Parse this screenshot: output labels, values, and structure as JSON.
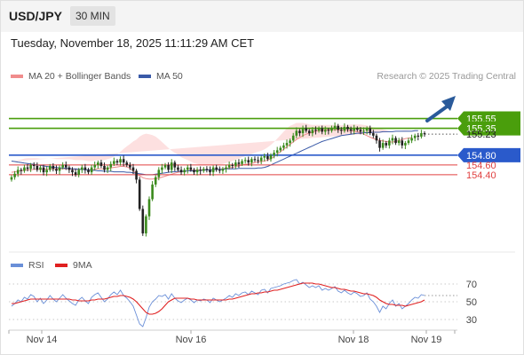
{
  "header": {
    "symbol": "USD/JPY",
    "timeframe": "30 MIN"
  },
  "datetime": "Tuesday, November 18, 2025 11:11:29 AM CET",
  "legend": {
    "ma_bb": {
      "label": "MA 20 + Bollinger Bands",
      "color": "#f08c8c"
    },
    "ma50": {
      "label": "MA 50",
      "color": "#3a5aa8"
    }
  },
  "credit": "Research © 2025 Trading Central",
  "rsi_legend": {
    "rsi": {
      "label": "RSI",
      "color": "#6a8fd8"
    },
    "ma9": {
      "label": "9MA",
      "color": "#e02020"
    }
  },
  "chart_data": [
    {
      "type": "candlestick",
      "ylim": [
        152.8,
        156.25
      ],
      "x_ticks": [
        "Nov 14",
        "Nov 16",
        "Nov 18",
        "Nov 19"
      ],
      "levels": [
        {
          "value": 155.55,
          "label": "155.55",
          "color": "#4a9e0c",
          "boxed": true
        },
        {
          "value": 155.35,
          "label": "155.35",
          "color": "#4a9e0c",
          "boxed": true
        },
        {
          "value": 155.23,
          "label": "155.23",
          "color": "#222222",
          "boxed": false,
          "dotted": true
        },
        {
          "value": 154.8,
          "label": "154.80",
          "color": "#2a5acb",
          "boxed": true
        },
        {
          "value": 154.6,
          "label": "154.60",
          "color": "#e04040",
          "boxed": false
        },
        {
          "value": 154.4,
          "label": "154.40",
          "color": "#e04040",
          "boxed": false
        }
      ],
      "close": [
        154.35,
        154.42,
        154.5,
        154.48,
        154.55,
        154.52,
        154.6,
        154.58,
        154.5,
        154.55,
        154.45,
        154.5,
        154.58,
        154.52,
        154.48,
        154.55,
        154.6,
        154.55,
        154.5,
        154.45,
        154.4,
        154.5,
        154.55,
        154.5,
        154.45,
        154.55,
        154.6,
        154.65,
        154.58,
        154.5,
        154.55,
        154.62,
        154.68,
        154.65,
        154.72,
        154.65,
        154.6,
        154.55,
        154.48,
        154.3,
        153.7,
        153.2,
        153.55,
        153.9,
        154.2,
        154.35,
        154.5,
        154.55,
        154.6,
        154.5,
        154.65,
        154.55,
        154.5,
        154.45,
        154.5,
        154.55,
        154.5,
        154.45,
        154.5,
        154.48,
        154.52,
        154.5,
        154.45,
        154.55,
        154.5,
        154.48,
        154.52,
        154.55,
        154.6,
        154.58,
        154.65,
        154.62,
        154.68,
        154.7,
        154.65,
        154.72,
        154.7,
        154.68,
        154.75,
        154.78,
        154.72,
        154.8,
        154.85,
        154.9,
        154.95,
        155.0,
        155.05,
        155.1,
        155.2,
        155.3,
        155.25,
        155.35,
        155.3,
        155.25,
        155.32,
        155.3,
        155.35,
        155.28,
        155.32,
        155.3,
        155.35,
        155.4,
        155.32,
        155.3,
        155.38,
        155.33,
        155.3,
        155.35,
        155.32,
        155.28,
        155.3,
        155.35,
        155.25,
        155.2,
        155.1,
        154.95,
        155.05,
        155.0,
        155.1,
        155.15,
        155.05,
        155.1,
        155.0,
        155.05,
        155.1,
        155.15,
        155.2,
        155.18,
        155.25,
        155.23
      ],
      "ma20": [
        154.45,
        154.46,
        154.47,
        154.48,
        154.49,
        154.5,
        154.5,
        154.51,
        154.51,
        154.51,
        154.51,
        154.51,
        154.52,
        154.52,
        154.52,
        154.52,
        154.52,
        154.52,
        154.52,
        154.51,
        154.51,
        154.51,
        154.51,
        154.5,
        154.5,
        154.5,
        154.51,
        154.52,
        154.52,
        154.52,
        154.53,
        154.54,
        154.55,
        154.56,
        154.57,
        154.57,
        154.56,
        154.53,
        154.48,
        154.42,
        154.38,
        154.34,
        154.32,
        154.31,
        154.31,
        154.32,
        154.33,
        154.35,
        154.37,
        154.39,
        154.41,
        154.43,
        154.45,
        154.46,
        154.47,
        154.48,
        154.49,
        154.49,
        154.5,
        154.5,
        154.5,
        154.5,
        154.5,
        154.5,
        154.51,
        154.51,
        154.52,
        154.53,
        154.54,
        154.55,
        154.57,
        154.58,
        154.6,
        154.61,
        154.62,
        154.63,
        154.65,
        154.66,
        154.67,
        154.68,
        154.7,
        154.73,
        154.77,
        154.82,
        154.87,
        154.92,
        154.97,
        155.02,
        155.07,
        155.12,
        155.16,
        155.2,
        155.23,
        155.25,
        155.27,
        155.29,
        155.3,
        155.31,
        155.32,
        155.32,
        155.32,
        155.32,
        155.32,
        155.31,
        155.31,
        155.3,
        155.3,
        155.29,
        155.28,
        155.26,
        155.23,
        155.2,
        155.17,
        155.14,
        155.12,
        155.1,
        155.09,
        155.08,
        155.07,
        155.07,
        155.08,
        155.1,
        155.12,
        155.14,
        155.15,
        155.16
      ],
      "ma50": [
        154.68,
        154.67,
        154.66,
        154.65,
        154.64,
        154.63,
        154.62,
        154.61,
        154.6,
        154.59,
        154.58,
        154.57,
        154.56,
        154.55,
        154.55,
        154.54,
        154.54,
        154.53,
        154.53,
        154.52,
        154.52,
        154.51,
        154.51,
        154.5,
        154.5,
        154.49,
        154.49,
        154.48,
        154.48,
        154.47,
        154.47,
        154.47,
        154.46,
        154.46,
        154.46,
        154.46,
        154.45,
        154.45,
        154.44,
        154.43,
        154.42,
        154.41,
        154.4,
        154.4,
        154.4,
        154.41,
        154.42,
        154.43,
        154.44,
        154.45,
        154.46,
        154.46,
        154.47,
        154.47,
        154.47,
        154.48,
        154.48,
        154.48,
        154.48,
        154.49,
        154.49,
        154.5,
        154.5,
        154.5,
        154.51,
        154.51,
        154.51,
        154.52,
        154.52,
        154.52,
        154.52,
        154.53,
        154.53,
        154.53,
        154.53,
        154.53,
        154.53,
        154.54,
        154.54,
        154.55,
        154.57,
        154.6,
        154.63,
        154.66,
        154.69,
        154.72,
        154.75,
        154.78,
        154.81,
        154.84,
        154.87,
        154.9,
        154.93,
        154.96,
        154.99,
        155.02,
        155.05,
        155.08,
        155.1,
        155.12,
        155.14,
        155.16,
        155.18,
        155.2,
        155.21,
        155.22,
        155.23,
        155.24,
        155.25,
        155.25,
        155.26,
        155.26,
        155.26,
        155.27,
        155.27,
        155.27,
        155.28,
        155.28,
        155.28,
        155.28,
        155.29,
        155.29,
        155.29,
        155.29,
        155.29,
        155.29,
        155.3,
        155.3
      ],
      "bb_width": [
        0.22,
        0.22,
        0.23,
        0.23,
        0.24,
        0.24,
        0.24,
        0.23,
        0.23,
        0.22,
        0.22,
        0.22,
        0.21,
        0.21,
        0.2,
        0.2,
        0.2,
        0.2,
        0.2,
        0.2,
        0.19,
        0.19,
        0.19,
        0.19,
        0.18,
        0.18,
        0.18,
        0.18,
        0.18,
        0.18,
        0.19,
        0.2,
        0.22,
        0.25,
        0.3,
        0.36,
        0.42,
        0.5,
        0.6,
        0.7,
        0.8,
        0.88,
        0.92,
        0.92,
        0.9,
        0.86,
        0.8,
        0.72,
        0.64,
        0.56,
        0.48,
        0.42,
        0.36,
        0.3,
        0.26,
        0.22,
        0.18,
        0.15,
        0.12,
        0.1,
        0.1,
        0.1,
        0.1,
        0.1,
        0.1,
        0.1,
        0.1,
        0.11,
        0.12,
        0.13,
        0.14,
        0.15,
        0.16,
        0.17,
        0.18,
        0.19,
        0.2,
        0.21,
        0.22,
        0.24,
        0.26,
        0.28,
        0.3,
        0.32,
        0.34,
        0.36,
        0.38,
        0.38,
        0.36,
        0.34,
        0.3,
        0.26,
        0.22,
        0.18,
        0.15,
        0.13,
        0.12,
        0.11,
        0.1,
        0.1,
        0.1,
        0.1,
        0.1,
        0.1,
        0.11,
        0.12,
        0.13,
        0.14,
        0.15,
        0.17,
        0.19,
        0.21,
        0.22,
        0.23,
        0.24,
        0.24,
        0.24,
        0.23,
        0.22,
        0.21,
        0.2,
        0.19,
        0.18,
        0.17,
        0.16,
        0.15,
        0.14,
        0.13,
        0.12,
        0.12
      ]
    },
    {
      "type": "line",
      "ylim": [
        22,
        78
      ],
      "y_ticks": [
        70,
        50,
        30
      ],
      "series": [
        {
          "name": "RSI",
          "color": "#6a8fd8",
          "values": [
            45,
            48,
            52,
            50,
            55,
            53,
            58,
            56,
            50,
            54,
            48,
            52,
            57,
            53,
            50,
            54,
            58,
            54,
            51,
            48,
            46,
            52,
            55,
            51,
            48,
            55,
            58,
            60,
            55,
            50,
            53,
            58,
            61,
            58,
            63,
            57,
            54,
            50,
            45,
            35,
            25,
            22,
            32,
            44,
            50,
            53,
            57,
            56,
            58,
            53,
            59,
            54,
            51,
            49,
            52,
            54,
            52,
            49,
            52,
            51,
            53,
            52,
            49,
            54,
            52,
            50,
            52,
            54,
            57,
            55,
            59,
            57,
            60,
            61,
            58,
            62,
            60,
            58,
            63,
            64,
            60,
            65,
            66,
            67,
            68,
            70,
            71,
            72,
            74,
            75,
            70,
            72,
            69,
            66,
            68,
            66,
            68,
            63,
            65,
            63,
            65,
            67,
            62,
            60,
            63,
            60,
            58,
            61,
            59,
            56,
            57,
            60,
            53,
            50,
            45,
            38,
            45,
            42,
            48,
            52,
            45,
            48,
            42,
            45,
            48,
            52,
            55,
            54,
            58,
            57
          ]
        },
        {
          "name": "9MA",
          "color": "#e02020",
          "values": [
            48,
            48,
            49,
            50,
            51,
            52,
            53,
            53,
            53,
            53,
            53,
            53,
            53,
            53,
            53,
            53,
            53,
            53,
            53,
            52,
            52,
            51,
            51,
            51,
            51,
            52,
            52,
            53,
            53,
            53,
            54,
            55,
            56,
            56,
            57,
            57,
            56,
            55,
            53,
            50,
            46,
            42,
            38,
            36,
            36,
            37,
            39,
            42,
            46,
            50,
            52,
            54,
            54,
            54,
            54,
            54,
            53,
            53,
            52,
            52,
            52,
            52,
            52,
            52,
            52,
            52,
            52,
            52,
            53,
            53,
            54,
            55,
            56,
            57,
            58,
            59,
            59,
            60,
            60,
            61,
            61,
            62,
            63,
            63,
            64,
            65,
            66,
            67,
            68,
            69,
            70,
            71,
            71,
            71,
            71,
            70,
            70,
            69,
            68,
            67,
            66,
            66,
            65,
            64,
            64,
            63,
            62,
            62,
            61,
            60,
            59,
            59,
            58,
            57,
            55,
            52,
            50,
            48,
            47,
            47,
            46,
            46,
            46,
            45,
            46,
            47,
            48,
            49,
            50,
            52
          ]
        }
      ]
    }
  ]
}
